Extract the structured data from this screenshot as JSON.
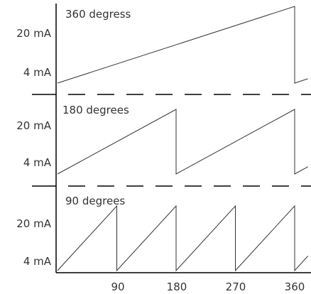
{
  "chart_data": {
    "type": "line",
    "x_unit": "degrees",
    "x_ticks": [
      "90",
      "180",
      "270",
      "360"
    ],
    "x_range": [
      0,
      360
    ],
    "y_ticks": [
      "20 mA",
      "4 mA"
    ],
    "y_range": [
      4,
      20
    ],
    "panels": [
      {
        "title": "360 degress",
        "period_degrees": 360,
        "x": [
          0,
          360,
          360,
          380
        ],
        "y": [
          4,
          20,
          4,
          4.9
        ]
      },
      {
        "title": "180 degrees",
        "period_degrees": 180,
        "x": [
          0,
          180,
          180,
          360,
          360,
          380
        ],
        "y": [
          4,
          20,
          4,
          20,
          4,
          5.8
        ]
      },
      {
        "title": "90 degrees",
        "period_degrees": 90,
        "x": [
          0,
          90,
          90,
          180,
          180,
          270,
          270,
          360,
          360,
          380
        ],
        "y": [
          4,
          20,
          4,
          20,
          4,
          20,
          4,
          20,
          4,
          7.6
        ]
      }
    ]
  }
}
